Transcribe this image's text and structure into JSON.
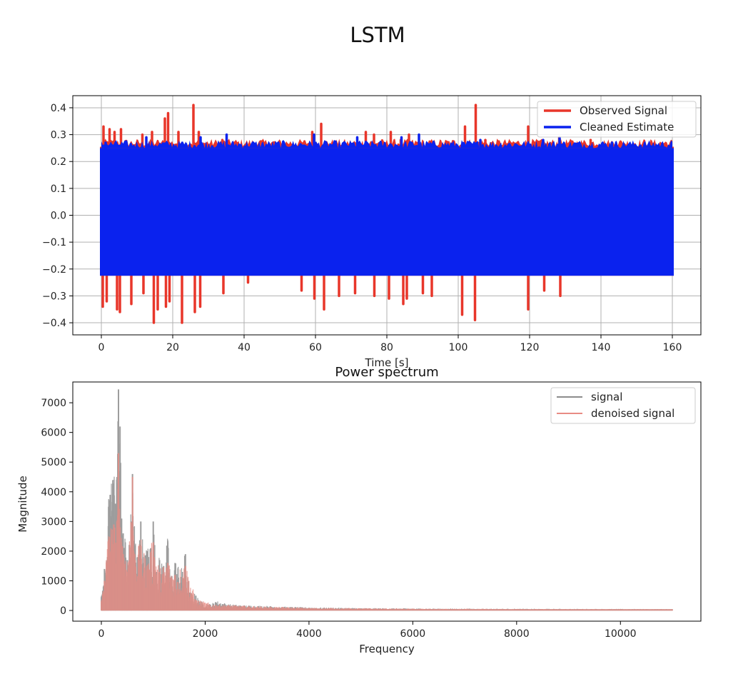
{
  "figure": {
    "suptitle": "LSTM"
  },
  "chart_data": [
    {
      "type": "line",
      "title": "",
      "xlabel": "Time [s]",
      "ylabel": "",
      "xlim": [
        -8,
        168
      ],
      "ylim": [
        -0.445,
        0.445
      ],
      "xticks": [
        0,
        20,
        40,
        60,
        80,
        100,
        120,
        140,
        160
      ],
      "yticks": [
        0.4,
        0.3,
        0.2,
        0.1,
        0.0,
        -0.1,
        -0.2,
        -0.3,
        -0.4
      ],
      "ytick_labels": [
        "0.4",
        "0.3",
        "0.2",
        "0.1",
        "0.0",
        "−0.1",
        "−0.2",
        "−0.3",
        "−0.4"
      ],
      "grid": true,
      "legend_position": "top-right",
      "signal_range_x": [
        0,
        160
      ],
      "series": [
        {
          "name": "Observed Signal",
          "color": "#e8362a",
          "band": [
            -0.225,
            0.255
          ],
          "peaks_pos": [
            [
              0.6,
              0.33
            ],
            [
              2.3,
              0.32
            ],
            [
              3.7,
              0.31
            ],
            [
              5.5,
              0.32
            ],
            [
              11.5,
              0.3
            ],
            [
              14.2,
              0.31
            ],
            [
              17.8,
              0.36
            ],
            [
              18.7,
              0.38
            ],
            [
              21.6,
              0.31
            ],
            [
              25.8,
              0.41
            ],
            [
              27.3,
              0.31
            ],
            [
              33.9,
              0.28
            ],
            [
              59.1,
              0.31
            ],
            [
              61.6,
              0.34
            ],
            [
              74.1,
              0.31
            ],
            [
              76.4,
              0.3
            ],
            [
              81.1,
              0.31
            ],
            [
              83.9,
              0.28
            ],
            [
              86.2,
              0.3
            ],
            [
              101.9,
              0.33
            ],
            [
              104.9,
              0.41
            ],
            [
              107.6,
              0.28
            ],
            [
              119.6,
              0.33
            ],
            [
              128.3,
              0.29
            ],
            [
              137.1,
              0.28
            ]
          ],
          "peaks_neg": [
            [
              0.4,
              -0.34
            ],
            [
              1.5,
              -0.32
            ],
            [
              4.4,
              -0.35
            ],
            [
              5.2,
              -0.36
            ],
            [
              8.4,
              -0.33
            ],
            [
              11.8,
              -0.29
            ],
            [
              14.7,
              -0.4
            ],
            [
              15.8,
              -0.35
            ],
            [
              18.1,
              -0.34
            ],
            [
              19.1,
              -0.32
            ],
            [
              22.6,
              -0.4
            ],
            [
              26.2,
              -0.36
            ],
            [
              27.7,
              -0.34
            ],
            [
              34.2,
              -0.29
            ],
            [
              41.1,
              -0.25
            ],
            [
              56.1,
              -0.28
            ],
            [
              59.7,
              -0.31
            ],
            [
              62.4,
              -0.35
            ],
            [
              66.6,
              -0.3
            ],
            [
              71.1,
              -0.29
            ],
            [
              76.5,
              -0.3
            ],
            [
              80.6,
              -0.31
            ],
            [
              84.6,
              -0.33
            ],
            [
              85.6,
              -0.31
            ],
            [
              90.1,
              -0.29
            ],
            [
              92.6,
              -0.3
            ],
            [
              101.1,
              -0.37
            ],
            [
              104.7,
              -0.39
            ],
            [
              119.6,
              -0.35
            ],
            [
              124.1,
              -0.28
            ],
            [
              128.6,
              -0.3
            ]
          ]
        },
        {
          "name": "Cleaned Estimate",
          "color": "#0a22ee",
          "band": [
            -0.225,
            0.25
          ],
          "peaks_pos": [
            [
              1.2,
              0.27
            ],
            [
              12.6,
              0.29
            ],
            [
              27.8,
              0.29
            ],
            [
              35.1,
              0.3
            ],
            [
              59.6,
              0.3
            ],
            [
              71.7,
              0.29
            ],
            [
              84.1,
              0.29
            ],
            [
              89.0,
              0.3
            ],
            [
              106.2,
              0.28
            ],
            [
              123.8,
              0.28
            ],
            [
              128.4,
              0.29
            ],
            [
              143.1,
              0.27
            ]
          ],
          "peaks_neg": []
        }
      ]
    },
    {
      "type": "bar",
      "title": "Power spectrum",
      "xlabel": "Frequency",
      "ylabel": "Magnitude",
      "xlim": [
        -550,
        11550
      ],
      "ylim": [
        -360,
        7700
      ],
      "xticks": [
        0,
        2000,
        4000,
        6000,
        8000,
        10000
      ],
      "yticks": [
        0,
        1000,
        2000,
        3000,
        4000,
        5000,
        6000,
        7000
      ],
      "grid": false,
      "legend_position": "top-right",
      "series": [
        {
          "name": "signal",
          "color": "#8c8c8c",
          "peaks": [
            [
              0,
              450
            ],
            [
              40,
              800
            ],
            [
              60,
              1400
            ],
            [
              120,
              1800
            ],
            [
              140,
              3500
            ],
            [
              170,
              3900
            ],
            [
              220,
              4200
            ],
            [
              240,
              4400
            ],
            [
              270,
              3600
            ],
            [
              300,
              4300
            ],
            [
              330,
              7450
            ],
            [
              360,
              6200
            ],
            [
              390,
              3100
            ],
            [
              420,
              2600
            ],
            [
              460,
              2300
            ],
            [
              500,
              1700
            ],
            [
              540,
              2200
            ],
            [
              600,
              4600
            ],
            [
              650,
              2200
            ],
            [
              700,
              1800
            ],
            [
              760,
              3000
            ],
            [
              820,
              1800
            ],
            [
              880,
              2000
            ],
            [
              950,
              2100
            ],
            [
              1000,
              3000
            ],
            [
              1060,
              1300
            ],
            [
              1120,
              1700
            ],
            [
              1200,
              1500
            ],
            [
              1280,
              2300
            ],
            [
              1340,
              1100
            ],
            [
              1420,
              1600
            ],
            [
              1560,
              1300
            ],
            [
              1620,
              1900
            ],
            [
              1700,
              600
            ],
            [
              1820,
              500
            ],
            [
              1900,
              300
            ],
            [
              2100,
              200
            ],
            [
              2200,
              280
            ],
            [
              2450,
              180
            ],
            [
              2750,
              150
            ],
            [
              3200,
              130
            ],
            [
              3500,
              110
            ],
            [
              4000,
              90
            ],
            [
              5000,
              70
            ],
            [
              6000,
              60
            ],
            [
              8000,
              50
            ],
            [
              10000,
              45
            ],
            [
              11000,
              40
            ]
          ]
        },
        {
          "name": "denoised signal",
          "color": "#e88c84",
          "peaks": [
            [
              0,
              300
            ],
            [
              60,
              1000
            ],
            [
              140,
              2400
            ],
            [
              240,
              2900
            ],
            [
              300,
              3000
            ],
            [
              330,
              5300
            ],
            [
              360,
              2800
            ],
            [
              420,
              1900
            ],
            [
              500,
              1300
            ],
            [
              600,
              4500
            ],
            [
              650,
              1700
            ],
            [
              760,
              2200
            ],
            [
              880,
              1500
            ],
            [
              1000,
              2300
            ],
            [
              1120,
              1300
            ],
            [
              1280,
              1600
            ],
            [
              1420,
              1200
            ],
            [
              1620,
              1500
            ],
            [
              1820,
              350
            ],
            [
              2200,
              180
            ],
            [
              3000,
              120
            ],
            [
              4000,
              80
            ],
            [
              6000,
              55
            ],
            [
              8000,
              45
            ],
            [
              11000,
              35
            ]
          ]
        }
      ]
    }
  ]
}
